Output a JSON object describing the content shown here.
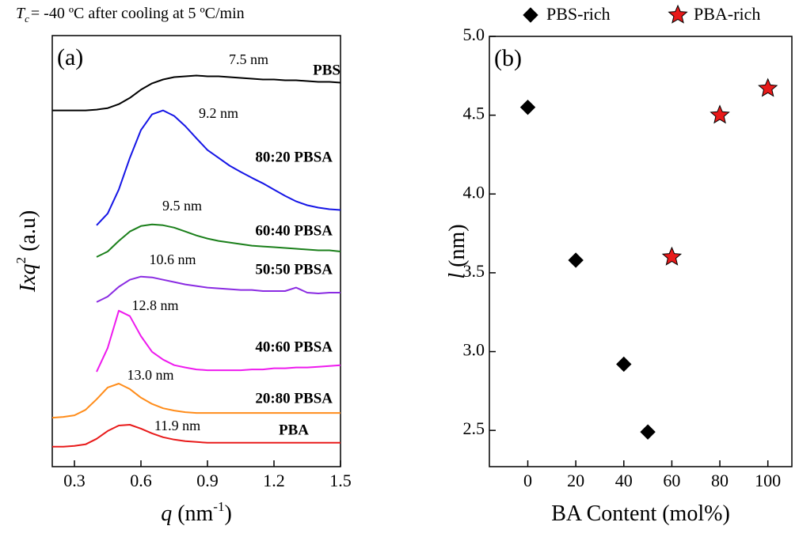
{
  "chart_data": [
    {
      "type": "line",
      "title_symbol": "T",
      "title_subscript": "c",
      "title": "= -40 ºC after cooling at 5 ºC/min",
      "panel_label": "(a)",
      "xlabel": [
        "q",
        " (nm",
        "-1",
        ")"
      ],
      "ylabel": [
        "Ixq",
        "2",
        " (a.u)"
      ],
      "xlim": [
        0.2,
        1.5
      ],
      "xticks": [
        0.3,
        0.6,
        0.9,
        1.2,
        1.5
      ],
      "ylim": [
        0,
        11
      ],
      "x": [
        0.2,
        0.25,
        0.3,
        0.35,
        0.4,
        0.45,
        0.5,
        0.55,
        0.6,
        0.65,
        0.7,
        0.75,
        0.8,
        0.85,
        0.9,
        0.95,
        1.0,
        1.05,
        1.1,
        1.15,
        1.2,
        1.25,
        1.3,
        1.35,
        1.4,
        1.45,
        1.5
      ],
      "series": [
        {
          "name": "PBS",
          "color": "#000000",
          "values": [
            9.09,
            9.09,
            9.09,
            9.09,
            9.11,
            9.15,
            9.25,
            9.41,
            9.62,
            9.78,
            9.88,
            9.94,
            9.96,
            9.98,
            9.96,
            9.96,
            9.94,
            9.92,
            9.9,
            9.88,
            9.88,
            9.86,
            9.86,
            9.84,
            9.82,
            9.82,
            9.8
          ]
        },
        {
          "name": "80:20 PBSA",
          "color": "#1515e6",
          "values": [
            null,
            null,
            null,
            null,
            6.16,
            6.46,
            7.07,
            7.88,
            8.59,
            8.99,
            9.09,
            8.95,
            8.69,
            8.38,
            8.08,
            7.88,
            7.68,
            7.52,
            7.37,
            7.23,
            7.07,
            6.91,
            6.77,
            6.67,
            6.61,
            6.57,
            6.55
          ]
        },
        {
          "name": "60:40 PBSA",
          "color": "#1a7f1a",
          "values": [
            null,
            null,
            null,
            null,
            5.35,
            5.49,
            5.76,
            6.0,
            6.14,
            6.18,
            6.16,
            6.1,
            6.0,
            5.9,
            5.82,
            5.76,
            5.72,
            5.68,
            5.64,
            5.62,
            5.6,
            5.58,
            5.56,
            5.54,
            5.52,
            5.52,
            5.49
          ]
        },
        {
          "name": "50:50 PBSA",
          "color": "#8a2be2",
          "values": [
            null,
            null,
            null,
            null,
            4.2,
            4.34,
            4.59,
            4.77,
            4.85,
            4.83,
            4.77,
            4.71,
            4.65,
            4.61,
            4.57,
            4.55,
            4.53,
            4.51,
            4.51,
            4.48,
            4.48,
            4.48,
            4.57,
            4.44,
            4.42,
            4.44,
            4.44
          ]
        },
        {
          "name": "40:60 PBSA",
          "color": "#ee1aee",
          "values": [
            null,
            null,
            null,
            null,
            2.42,
            3.03,
            3.98,
            3.84,
            3.33,
            2.93,
            2.73,
            2.59,
            2.53,
            2.48,
            2.46,
            2.46,
            2.46,
            2.46,
            2.48,
            2.48,
            2.51,
            2.51,
            2.53,
            2.53,
            2.55,
            2.57,
            2.59
          ]
        },
        {
          "name": "20:80 PBSA",
          "color": "#ff8c1a",
          "values": [
            1.25,
            1.27,
            1.31,
            1.45,
            1.72,
            2.02,
            2.12,
            1.98,
            1.76,
            1.6,
            1.49,
            1.43,
            1.39,
            1.37,
            1.37,
            1.37,
            1.37,
            1.37,
            1.37,
            1.37,
            1.37,
            1.37,
            1.37,
            1.37,
            1.37,
            1.37,
            1.37
          ]
        },
        {
          "name": "PBA",
          "color": "#e81a1a",
          "values": [
            0.51,
            0.51,
            0.53,
            0.57,
            0.71,
            0.91,
            1.05,
            1.07,
            0.97,
            0.85,
            0.75,
            0.69,
            0.65,
            0.63,
            0.61,
            0.61,
            0.61,
            0.61,
            0.61,
            0.61,
            0.61,
            0.61,
            0.61,
            0.61,
            0.61,
            0.61,
            0.61
          ]
        }
      ],
      "annotations": [
        "7.5 nm",
        "9.2 nm",
        "9.5 nm",
        "10.6 nm",
        "12.8 nm",
        "13.0 nm",
        "11.9 nm"
      ]
    },
    {
      "type": "scatter",
      "panel_label": "(b)",
      "xlabel": [
        "BA Content (mol%)"
      ],
      "ylabel": [
        "l",
        " (nm)"
      ],
      "xlim": [
        -16,
        110
      ],
      "xticks": [
        0,
        20,
        40,
        60,
        80,
        100
      ],
      "ylim": [
        2.27,
        5.0
      ],
      "yticks": [
        2.5,
        {
          "value": 3,
          "label": "3.0"
        },
        3.5,
        {
          "value": 4,
          "label": "4.0"
        },
        4.5,
        {
          "value": 5,
          "label": "5.0"
        }
      ],
      "series": [
        {
          "name": "PBS-rich",
          "color": "#000000",
          "marker": "diamond",
          "x": [
            0,
            20,
            40,
            50
          ],
          "values": [
            4.55,
            3.58,
            2.92,
            2.49
          ]
        },
        {
          "name": "PBA-rich",
          "color": "#e81a1a",
          "marker": "star",
          "x": [
            60,
            80,
            100
          ],
          "values": [
            3.6,
            4.5,
            4.67
          ]
        }
      ]
    }
  ]
}
